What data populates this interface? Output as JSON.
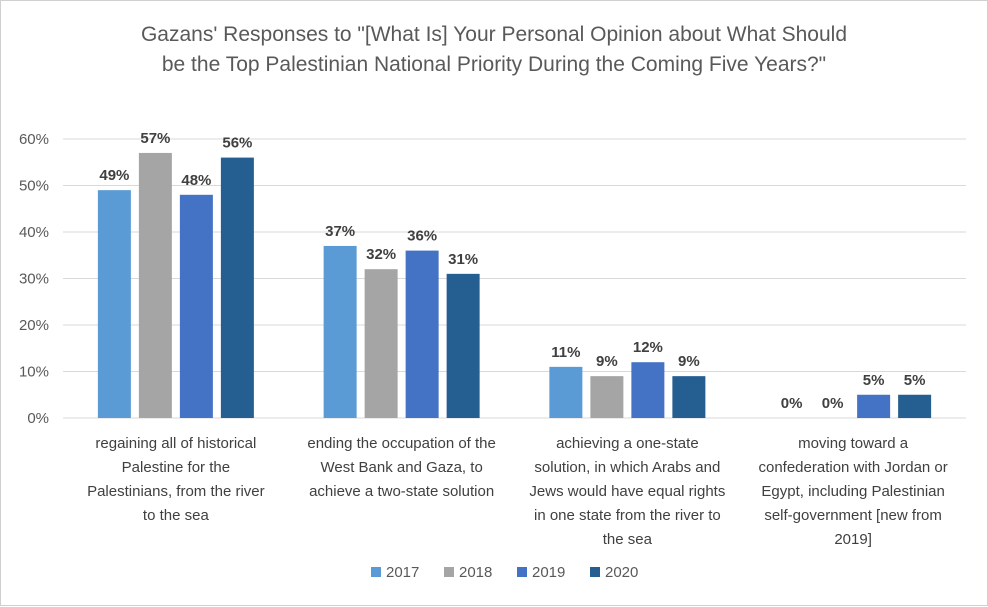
{
  "chart_data": {
    "type": "bar",
    "title_lines": [
      "Gazans' Responses to \"[What Is] Your Personal Opinion about What Should",
      "be the Top Palestinian National Priority During the Coming Five Years?\""
    ],
    "categories": [
      [
        "regaining all of historical",
        "Palestine for the",
        "Palestinians, from the river",
        "to the sea"
      ],
      [
        "ending the occupation of the",
        "West Bank and Gaza, to",
        "achieve a two-state solution"
      ],
      [
        "achieving a one-state",
        "solution, in which Arabs and",
        "Jews would have equal rights",
        "in one state from the river to",
        "the sea"
      ],
      [
        "moving toward a",
        "confederation with Jordan or",
        "Egypt, including Palestinian",
        "self-government [new from",
        "2019]"
      ]
    ],
    "series": [
      {
        "name": "2017",
        "color": "#5b9bd5",
        "values": [
          49,
          37,
          11,
          0
        ],
        "labels": [
          "49%",
          "37%",
          "11%",
          "0%"
        ]
      },
      {
        "name": "2018",
        "color": "#a5a5a5",
        "values": [
          57,
          32,
          9,
          0
        ],
        "labels": [
          "57%",
          "32%",
          "9%",
          "0%"
        ]
      },
      {
        "name": "2019",
        "color": "#4472c4",
        "values": [
          48,
          36,
          12,
          5
        ],
        "labels": [
          "48%",
          "36%",
          "12%",
          "5%"
        ]
      },
      {
        "name": "2020",
        "color": "#255e91",
        "values": [
          56,
          31,
          9,
          5
        ],
        "labels": [
          "56%",
          "31%",
          "9%",
          "5%"
        ]
      }
    ],
    "ylim": [
      0,
      60
    ],
    "yticks": [
      0,
      10,
      20,
      30,
      40,
      50,
      60
    ],
    "ytick_labels": [
      "0%",
      "10%",
      "20%",
      "30%",
      "40%",
      "50%",
      "60%"
    ],
    "grid": true,
    "legend_position": "bottom"
  }
}
